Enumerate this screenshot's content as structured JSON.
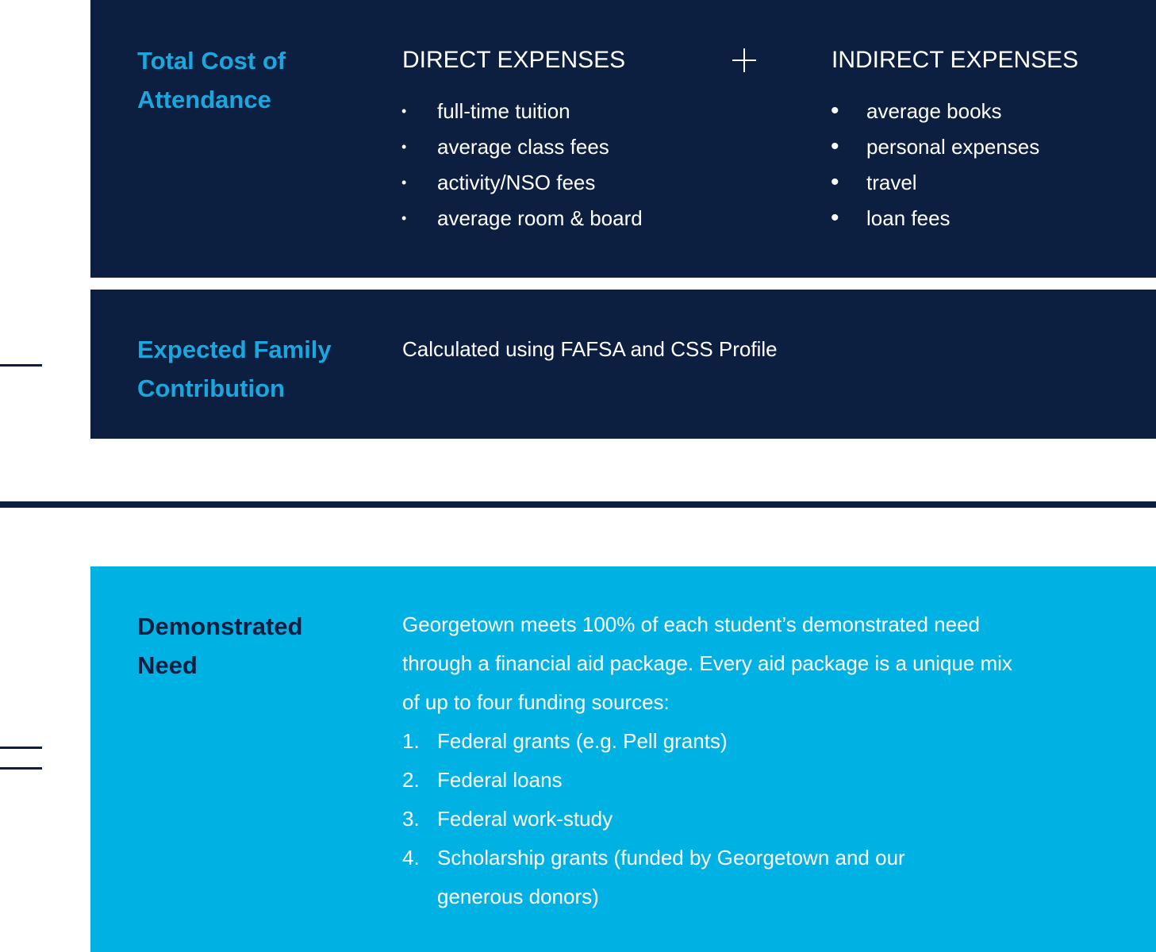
{
  "cost_of_attendance": {
    "label": "Total Cost of Attendance",
    "direct": {
      "title": "DIRECT EXPENSES",
      "items": [
        "full-time tuition",
        "average class fees",
        "activity/NSO fees",
        "average room & board"
      ]
    },
    "indirect": {
      "title": "INDIRECT EXPENSES",
      "items": [
        "average books",
        "personal expenses",
        "travel",
        "loan fees"
      ]
    }
  },
  "family_contribution": {
    "label": "Expected Family Contribution",
    "text": "Calculated using FAFSA and CSS Profile"
  },
  "demonstrated_need": {
    "label": "Demonstrated Need",
    "paragraph": [
      "Georgetown meets 100% of each student’s demonstrated need",
      "through a financial aid package. Every aid package is a unique mix",
      "of up to four funding sources:"
    ],
    "sources": [
      {
        "number": "1.",
        "text": "Federal grants (e.g. Pell grants)"
      },
      {
        "number": "2.",
        "text": "Federal loans"
      },
      {
        "number": "3.",
        "text": "Federal work-study"
      },
      {
        "number": "4.",
        "text": "Scholarship grants (funded by Georgetown and our generous donors)"
      }
    ]
  }
}
